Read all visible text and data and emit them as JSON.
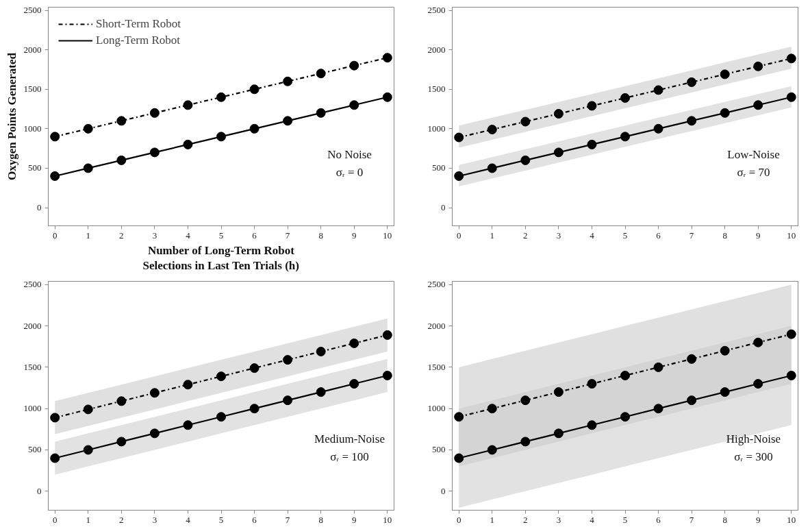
{
  "chart_data": [
    {
      "type": "line",
      "xlabel": "Number of Long-Term Robot\nSelections in Last Ten Trials (h)",
      "ylabel": "Oxygen Points Generated",
      "x": [
        0,
        1,
        2,
        3,
        4,
        5,
        6,
        7,
        8,
        9,
        10
      ],
      "xlim": [
        -0.2,
        10.2
      ],
      "ylim": [
        -230,
        2540
      ],
      "xticks": [
        0,
        1,
        2,
        3,
        4,
        5,
        6,
        7,
        8,
        9,
        10
      ],
      "yticks": [
        0,
        500,
        1000,
        1500,
        2000,
        2500
      ],
      "grid": false,
      "legend": "top left",
      "marker": "circle",
      "annotations": [
        "No Noise",
        "σᵣ = 0"
      ],
      "series": [
        {
          "name": "Short-Term Robot",
          "color": "#000000",
          "line_style": "dashdot",
          "values": [
            900,
            1000,
            1100,
            1200,
            1300,
            1400,
            1500,
            1600,
            1700,
            1800,
            1900
          ]
        },
        {
          "name": "Long-Term Robot",
          "color": "#000000",
          "line_style": "solid",
          "values": [
            400,
            500,
            600,
            700,
            800,
            900,
            1000,
            1100,
            1200,
            1300,
            1400
          ]
        }
      ]
    },
    {
      "type": "line",
      "x": [
        0,
        1,
        2,
        3,
        4,
        5,
        6,
        7,
        8,
        9,
        10
      ],
      "xlim": [
        -0.2,
        10.2
      ],
      "ylim": [
        -230,
        2540
      ],
      "xticks": [
        0,
        1,
        2,
        3,
        4,
        5,
        6,
        7,
        8,
        9,
        10
      ],
      "yticks": [
        0,
        500,
        1000,
        1500,
        2000,
        2500
      ],
      "grid": false,
      "marker": "circle",
      "annotations": [
        "Low-Noise",
        "σᵣ = 70"
      ],
      "series": [
        {
          "color": "#000000",
          "line_style": "dashdot",
          "values": [
            890,
            990,
            1090,
            1190,
            1290,
            1390,
            1490,
            1590,
            1690,
            1790,
            1890
          ],
          "lower": [
            760,
            860,
            960,
            1060,
            1160,
            1260,
            1360,
            1460,
            1560,
            1660,
            1760
          ],
          "upper": [
            1040,
            1140,
            1240,
            1340,
            1440,
            1540,
            1640,
            1740,
            1840,
            1940,
            2040
          ]
        },
        {
          "color": "#000000",
          "line_style": "solid",
          "values": [
            400,
            500,
            600,
            700,
            800,
            900,
            1000,
            1100,
            1200,
            1300,
            1400
          ],
          "lower": [
            270,
            370,
            470,
            570,
            670,
            770,
            870,
            970,
            1070,
            1170,
            1270
          ],
          "upper": [
            540,
            640,
            740,
            840,
            940,
            1040,
            1140,
            1240,
            1340,
            1440,
            1540
          ]
        }
      ]
    },
    {
      "type": "line",
      "x": [
        0,
        1,
        2,
        3,
        4,
        5,
        6,
        7,
        8,
        9,
        10
      ],
      "xlim": [
        -0.2,
        10.2
      ],
      "ylim": [
        -230,
        2540
      ],
      "xticks": [
        0,
        1,
        2,
        3,
        4,
        5,
        6,
        7,
        8,
        9,
        10
      ],
      "yticks": [
        0,
        500,
        1000,
        1500,
        2000,
        2500
      ],
      "grid": false,
      "marker": "circle",
      "annotations": [
        "Medium-Noise",
        "σᵣ = 100"
      ],
      "series": [
        {
          "color": "#000000",
          "line_style": "dashdot",
          "values": [
            890,
            990,
            1090,
            1190,
            1290,
            1390,
            1490,
            1590,
            1690,
            1790,
            1890
          ],
          "lower": [
            690,
            790,
            890,
            990,
            1090,
            1190,
            1290,
            1390,
            1490,
            1590,
            1690
          ],
          "upper": [
            1090,
            1190,
            1290,
            1390,
            1490,
            1590,
            1690,
            1790,
            1890,
            1990,
            2090
          ]
        },
        {
          "color": "#000000",
          "line_style": "solid",
          "values": [
            400,
            500,
            600,
            700,
            800,
            900,
            1000,
            1100,
            1200,
            1300,
            1400
          ],
          "lower": [
            200,
            300,
            400,
            500,
            600,
            700,
            800,
            900,
            1000,
            1100,
            1200
          ],
          "upper": [
            600,
            700,
            800,
            900,
            1000,
            1100,
            1200,
            1300,
            1400,
            1500,
            1600
          ]
        }
      ]
    },
    {
      "type": "line",
      "x": [
        0,
        1,
        2,
        3,
        4,
        5,
        6,
        7,
        8,
        9,
        10
      ],
      "xlim": [
        -0.2,
        10.2
      ],
      "ylim": [
        -230,
        2540
      ],
      "xticks": [
        0,
        1,
        2,
        3,
        4,
        5,
        6,
        7,
        8,
        9,
        10
      ],
      "yticks": [
        0,
        500,
        1000,
        1500,
        2000,
        2500
      ],
      "grid": false,
      "marker": "circle",
      "annotations": [
        "High-Noise",
        "σᵣ = 300"
      ],
      "series": [
        {
          "color": "#000000",
          "line_style": "dashdot",
          "values": [
            900,
            1000,
            1100,
            1200,
            1300,
            1400,
            1500,
            1600,
            1700,
            1800,
            1900
          ],
          "lower": [
            300,
            400,
            500,
            600,
            700,
            800,
            900,
            1000,
            1100,
            1200,
            1300
          ],
          "upper": [
            1500,
            1600,
            1700,
            1800,
            1900,
            2000,
            2100,
            2200,
            2300,
            2400,
            2500
          ]
        },
        {
          "color": "#000000",
          "line_style": "solid",
          "values": [
            400,
            500,
            600,
            700,
            800,
            900,
            1000,
            1100,
            1200,
            1300,
            1400
          ],
          "lower": [
            -200,
            -100,
            0,
            100,
            200,
            300,
            400,
            500,
            600,
            700,
            800
          ],
          "upper": [
            1000,
            1100,
            1200,
            1300,
            1400,
            1500,
            1600,
            1700,
            1800,
            1900,
            2000
          ]
        }
      ]
    }
  ]
}
